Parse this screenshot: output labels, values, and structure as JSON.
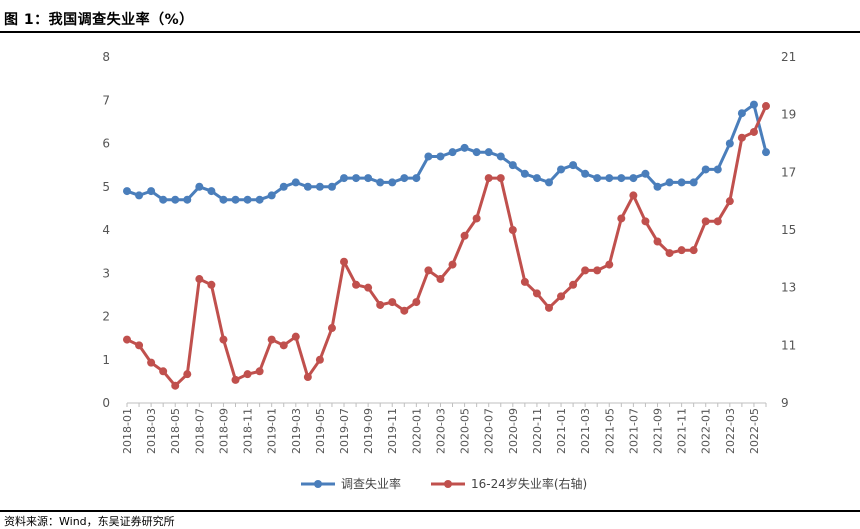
{
  "figure": {
    "title": "图 1：我国调查失业率（%）",
    "source": "资料来源：Wind，东吴证券研究所"
  },
  "colors": {
    "series1": "#4a7ebb",
    "series2": "#c0504d",
    "axis": "#bfbfbf",
    "text": "#555555"
  },
  "chart_data": {
    "type": "line",
    "title": "我国调查失业率（%）",
    "xlabel": "",
    "ylabel_left": "",
    "ylabel_right": "",
    "ylim_left": [
      0,
      8
    ],
    "ylim_right": [
      9,
      21
    ],
    "yticks_left": [
      "0",
      "1",
      "2",
      "3",
      "4",
      "5",
      "6",
      "7",
      "8"
    ],
    "yticks_right": [
      "9",
      "11",
      "13",
      "15",
      "17",
      "19",
      "21"
    ],
    "x": [
      "2018-01",
      "2018-02",
      "2018-03",
      "2018-04",
      "2018-05",
      "2018-06",
      "2018-07",
      "2018-08",
      "2018-09",
      "2018-10",
      "2018-11",
      "2018-12",
      "2019-01",
      "2019-02",
      "2019-03",
      "2019-04",
      "2019-05",
      "2019-06",
      "2019-07",
      "2019-08",
      "2019-09",
      "2019-10",
      "2019-11",
      "2019-12",
      "2020-01",
      "2020-02",
      "2020-03",
      "2020-04",
      "2020-05",
      "2020-06",
      "2020-07",
      "2020-08",
      "2020-09",
      "2020-10",
      "2020-11",
      "2020-12",
      "2021-01",
      "2021-02",
      "2021-03",
      "2021-04",
      "2021-05",
      "2021-06",
      "2021-07",
      "2021-08",
      "2021-09",
      "2021-10",
      "2021-11",
      "2021-12",
      "2022-01",
      "2022-02",
      "2022-03",
      "2022-04",
      "2022-05",
      "2022-06"
    ],
    "xtick_labels": [
      "2018-01",
      "2018-03",
      "2018-05",
      "2018-07",
      "2018-09",
      "2018-11",
      "2019-01",
      "2019-03",
      "2019-05",
      "2019-07",
      "2019-09",
      "2019-11",
      "2020-01",
      "2020-03",
      "2020-05",
      "2020-07",
      "2020-09",
      "2020-11",
      "2021-01",
      "2021-03",
      "2021-05",
      "2021-07",
      "2021-09",
      "2021-11",
      "2022-01",
      "2022-03",
      "2022-05"
    ],
    "series": [
      {
        "name": "调查失业率",
        "axis": "left",
        "values": [
          4.9,
          4.8,
          4.9,
          4.7,
          4.7,
          4.7,
          5.0,
          4.9,
          4.7,
          4.7,
          4.7,
          4.7,
          4.8,
          5.0,
          5.1,
          5.0,
          5.0,
          5.0,
          5.2,
          5.2,
          5.2,
          5.1,
          5.1,
          5.2,
          5.2,
          5.7,
          5.7,
          5.8,
          5.9,
          5.8,
          5.8,
          5.7,
          5.5,
          5.3,
          5.2,
          5.1,
          5.4,
          5.5,
          5.3,
          5.2,
          5.2,
          5.2,
          5.2,
          5.3,
          5.0,
          5.1,
          5.1,
          5.1,
          5.4,
          5.4,
          6.0,
          6.7,
          6.9,
          5.8
        ]
      },
      {
        "name": "16-24岁失业率(右轴)",
        "axis": "right",
        "values": [
          11.2,
          11.0,
          10.4,
          10.1,
          9.6,
          10.0,
          13.3,
          13.1,
          11.2,
          9.8,
          10.0,
          10.1,
          11.2,
          11.0,
          11.3,
          9.9,
          10.5,
          11.6,
          13.9,
          13.1,
          13.0,
          12.4,
          12.5,
          12.2,
          12.5,
          13.6,
          13.3,
          13.8,
          14.8,
          15.4,
          16.8,
          16.8,
          15.0,
          13.2,
          12.8,
          12.3,
          12.7,
          13.1,
          13.6,
          13.6,
          13.8,
          15.4,
          16.2,
          15.3,
          14.6,
          14.2,
          14.3,
          14.3,
          15.3,
          15.3,
          16.0,
          18.2,
          18.4,
          19.3
        ]
      }
    ],
    "legend_position": "bottom-center",
    "grid": false
  }
}
